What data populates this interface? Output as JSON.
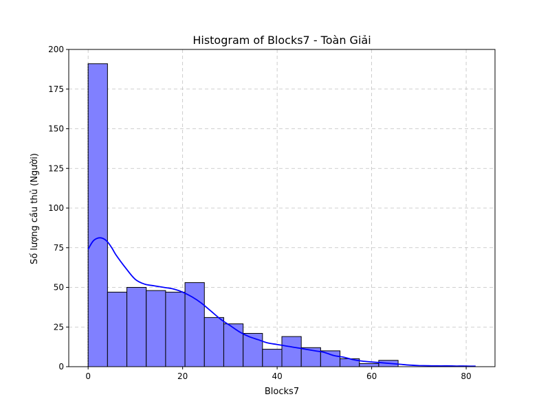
{
  "chart_data": {
    "type": "bar",
    "title": "Histogram of Blocks7 - Toàn Giải",
    "xlabel": "Blocks7",
    "ylabel": "Số lượng cầu thủ (Người)",
    "xlim": [
      -4.1,
      86.1
    ],
    "ylim": [
      0,
      200
    ],
    "xticks": [
      0,
      20,
      40,
      60,
      80
    ],
    "yticks": [
      0,
      25,
      50,
      75,
      100,
      125,
      150,
      175,
      200
    ],
    "grid": true,
    "bar_color": "#8080ff",
    "kde_color": "#0000ff",
    "bin_width": 4.1,
    "bins": [
      {
        "x0": 0.0,
        "x1": 4.1,
        "count": 191
      },
      {
        "x0": 4.1,
        "x1": 8.2,
        "count": 47
      },
      {
        "x0": 8.2,
        "x1": 12.3,
        "count": 50
      },
      {
        "x0": 12.3,
        "x1": 16.4,
        "count": 48
      },
      {
        "x0": 16.4,
        "x1": 20.5,
        "count": 47
      },
      {
        "x0": 20.5,
        "x1": 24.6,
        "count": 53
      },
      {
        "x0": 24.6,
        "x1": 28.7,
        "count": 31
      },
      {
        "x0": 28.7,
        "x1": 32.8,
        "count": 27
      },
      {
        "x0": 32.8,
        "x1": 36.9,
        "count": 21
      },
      {
        "x0": 36.9,
        "x1": 41.0,
        "count": 11
      },
      {
        "x0": 41.0,
        "x1": 45.1,
        "count": 19
      },
      {
        "x0": 45.1,
        "x1": 49.2,
        "count": 12
      },
      {
        "x0": 49.2,
        "x1": 53.3,
        "count": 10
      },
      {
        "x0": 53.3,
        "x1": 57.4,
        "count": 5
      },
      {
        "x0": 57.4,
        "x1": 61.5,
        "count": 2
      },
      {
        "x0": 61.5,
        "x1": 65.6,
        "count": 4
      }
    ],
    "kde": {
      "x": [
        0,
        1,
        2,
        3,
        4,
        5,
        6,
        8,
        10,
        12,
        14,
        16,
        18,
        20,
        22,
        24,
        26,
        28,
        30,
        32,
        34,
        36,
        38,
        40,
        42,
        44,
        46,
        48,
        50,
        52,
        54,
        56,
        58,
        60,
        62,
        64,
        66,
        68,
        70,
        72,
        74,
        76,
        78,
        80,
        82
      ],
      "y": [
        74,
        79,
        81,
        81,
        79,
        75,
        70,
        62,
        55,
        52,
        51,
        50,
        49,
        47,
        44,
        40,
        35,
        30,
        26,
        22,
        19,
        17,
        15,
        14,
        13,
        12,
        11,
        10,
        9,
        7,
        6,
        4.5,
        3.5,
        3,
        2.5,
        2,
        1.5,
        1,
        0.7,
        0.6,
        0.5,
        0.5,
        0.4,
        0.4,
        0.3
      ]
    }
  }
}
